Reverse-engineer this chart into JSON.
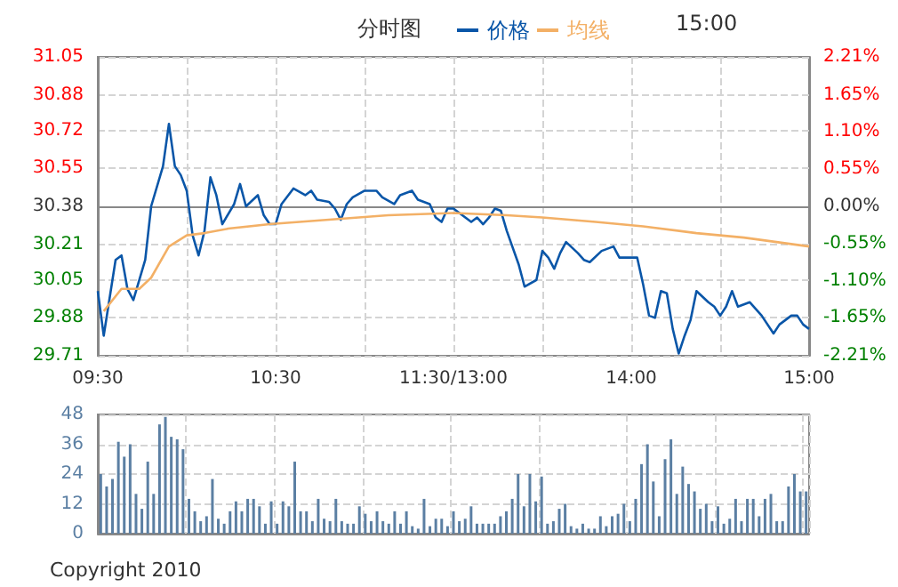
{
  "chart_data": [
    {
      "type": "line",
      "title": "分时图",
      "annotations": [
        "15:00"
      ],
      "legend": "top",
      "grid": true,
      "marker": "none",
      "line_style": "solid",
      "categories": [
        "09:30",
        null,
        null,
        null,
        null,
        null,
        null,
        null,
        null,
        null,
        null,
        null,
        null,
        null,
        null,
        null,
        null,
        null,
        null,
        null,
        null,
        null,
        null,
        null,
        null,
        null,
        null,
        null,
        null,
        null,
        "10:30",
        null,
        null,
        null,
        null,
        null,
        null,
        null,
        null,
        null,
        null,
        null,
        null,
        null,
        null,
        null,
        null,
        null,
        null,
        null,
        null,
        null,
        null,
        null,
        null,
        null,
        null,
        null,
        null,
        null,
        "11:30/13:00",
        null,
        null,
        null,
        null,
        null,
        null,
        null,
        null,
        null,
        null,
        null,
        null,
        null,
        null,
        null,
        null,
        null,
        null,
        null,
        null,
        null,
        null,
        null,
        null,
        null,
        null,
        null,
        null,
        null,
        "14:00",
        null,
        null,
        null,
        null,
        null,
        null,
        null,
        null,
        null,
        null,
        null,
        null,
        null,
        null,
        null,
        null,
        null,
        null,
        null,
        null,
        null,
        null,
        null,
        null,
        null,
        null,
        null,
        null,
        null,
        "15:00"
      ],
      "ylim": [
        29.71,
        31.05
      ],
      "yticks": [
        29.71,
        29.88,
        30.05,
        30.21,
        30.38,
        30.55,
        30.72,
        30.88,
        31.05
      ],
      "y2lim": [
        -2.21,
        2.21
      ],
      "y2ticks": [
        {
          "value": -2.21,
          "label": "-2.21%"
        },
        {
          "value": -1.65,
          "label": "-1.65%"
        },
        {
          "value": -1.1,
          "label": "-1.10%"
        },
        {
          "value": -0.55,
          "label": "-0.55%"
        },
        {
          "value": 0,
          "label": "0.00%"
        },
        {
          "value": 0.55,
          "label": "0.55%"
        },
        {
          "value": 1.1,
          "label": "1.10%"
        },
        {
          "value": 1.65,
          "label": "1.65%"
        },
        {
          "value": 2.21,
          "label": "2.21%"
        }
      ],
      "series": [
        {
          "name": "价格",
          "color": "#0a56a8",
          "values": [
            30.0,
            29.8,
            null,
            30.14,
            30.16,
            30.01,
            29.96,
            null,
            30.14,
            30.38,
            null,
            30.56,
            30.75,
            30.56,
            30.52,
            30.45,
            30.25,
            30.16,
            30.27,
            30.51,
            30.43,
            30.3,
            null,
            30.39,
            30.48,
            30.38,
            null,
            30.43,
            30.34,
            30.3,
            30.3,
            30.39,
            null,
            30.46,
            null,
            30.43,
            30.45,
            30.41,
            null,
            30.4,
            30.37,
            30.32,
            30.39,
            30.42,
            null,
            30.45,
            null,
            30.45,
            30.42,
            null,
            30.39,
            30.43,
            null,
            30.45,
            30.41,
            null,
            30.39,
            30.33,
            30.31,
            30.37,
            30.37,
            null,
            30.33,
            30.31,
            30.33,
            30.3,
            30.33,
            30.37,
            30.36,
            30.27,
            null,
            30.12,
            30.02,
            null,
            30.05,
            30.18,
            30.15,
            30.1,
            30.17,
            30.22,
            null,
            30.17,
            30.14,
            30.13,
            null,
            30.18,
            null,
            30.2,
            30.15,
            30.15,
            null,
            30.15,
            30.03,
            29.89,
            29.88,
            30.0,
            29.99,
            29.83,
            29.72,
            29.8,
            29.87,
            30.0,
            null,
            29.95,
            29.93,
            29.89,
            29.93,
            30.0,
            29.93,
            null,
            29.95,
            null,
            29.89,
            null,
            29.81,
            29.85,
            null,
            29.89,
            29.89,
            29.85,
            29.83
          ]
        },
        {
          "name": "均线",
          "color": "#f3b066",
          "values": [
            null,
            29.91,
            null,
            null,
            30.01,
            null,
            null,
            30.01,
            null,
            30.06,
            null,
            null,
            30.2,
            null,
            null,
            30.25,
            null,
            null,
            30.26,
            null,
            null,
            null,
            30.28,
            null,
            null,
            null,
            null,
            null,
            null,
            30.3,
            null,
            null,
            null,
            null,
            null,
            null,
            null,
            null,
            null,
            30.32,
            null,
            null,
            null,
            null,
            null,
            null,
            null,
            null,
            null,
            30.34,
            null,
            null,
            null,
            null,
            null,
            null,
            null,
            null,
            null,
            null,
            30.35,
            null,
            null,
            null,
            null,
            null,
            null,
            null,
            null,
            30.34,
            null,
            null,
            null,
            null,
            null,
            30.33,
            null,
            null,
            null,
            null,
            null,
            null,
            null,
            null,
            30.31,
            null,
            null,
            null,
            null,
            null,
            null,
            null,
            30.29,
            null,
            null,
            null,
            null,
            null,
            null,
            null,
            null,
            30.26,
            null,
            null,
            null,
            null,
            null,
            null,
            null,
            30.24,
            null,
            null,
            null,
            null,
            null,
            null,
            null,
            null,
            null,
            null,
            30.2
          ]
        }
      ]
    },
    {
      "type": "bar",
      "tick_labels": "y",
      "grid": true,
      "annotations": [
        "Copyright 2010"
      ],
      "categories": [
        null,
        null,
        null,
        null,
        null,
        null,
        null,
        null,
        null,
        null,
        null,
        null,
        null,
        null,
        null,
        null,
        null,
        null,
        null,
        null,
        null,
        null,
        null,
        null,
        null,
        null,
        null,
        null,
        null,
        null,
        null,
        null,
        null,
        null,
        null,
        null,
        null,
        null,
        null,
        null,
        null,
        null,
        null,
        null,
        null,
        null,
        null,
        null,
        null,
        null,
        null,
        null,
        null,
        null,
        null,
        null,
        null,
        null,
        null,
        null,
        null,
        null,
        null,
        null,
        null,
        null,
        null,
        null,
        null,
        null,
        null,
        null,
        null,
        null,
        null,
        null,
        null,
        null,
        null,
        null,
        null,
        null,
        null,
        null,
        null,
        null,
        null,
        null,
        null,
        null,
        null,
        null,
        null,
        null,
        null,
        null,
        null,
        null,
        null,
        null,
        null,
        null,
        null,
        null,
        null,
        null,
        null,
        null,
        null,
        null,
        null,
        null,
        null,
        null,
        null,
        null,
        null,
        null,
        null,
        null,
        null
      ],
      "ylim": [
        0,
        48
      ],
      "yticks": [
        0,
        12,
        24,
        36,
        48
      ],
      "series": [
        {
          "color": "#5b7fa3",
          "values": [
            24,
            19,
            22,
            37,
            31,
            36,
            16,
            10,
            29,
            16,
            44,
            47,
            39,
            38,
            34,
            14,
            9,
            5,
            7,
            22,
            6,
            4,
            9,
            13,
            9,
            14,
            14,
            11,
            4,
            13,
            4,
            13,
            11,
            29,
            9,
            9,
            5,
            14,
            6,
            5,
            14,
            5,
            4,
            4,
            11,
            8,
            5,
            9,
            5,
            4,
            9,
            4,
            9,
            3,
            2,
            14,
            3,
            6,
            6,
            3,
            9,
            5,
            6,
            11,
            4,
            4,
            4,
            4,
            7,
            9,
            14,
            24,
            11,
            24,
            13,
            23,
            4,
            5,
            10,
            12,
            3,
            2,
            4,
            2,
            2,
            7,
            3,
            7,
            8,
            12,
            5,
            14,
            28,
            36,
            21,
            7,
            30,
            38,
            16,
            27,
            20,
            17,
            10,
            12,
            5,
            11,
            4,
            6,
            14,
            5,
            14,
            14,
            7,
            14,
            16,
            5,
            5,
            19,
            24,
            17,
            17
          ]
        }
      ]
    }
  ]
}
